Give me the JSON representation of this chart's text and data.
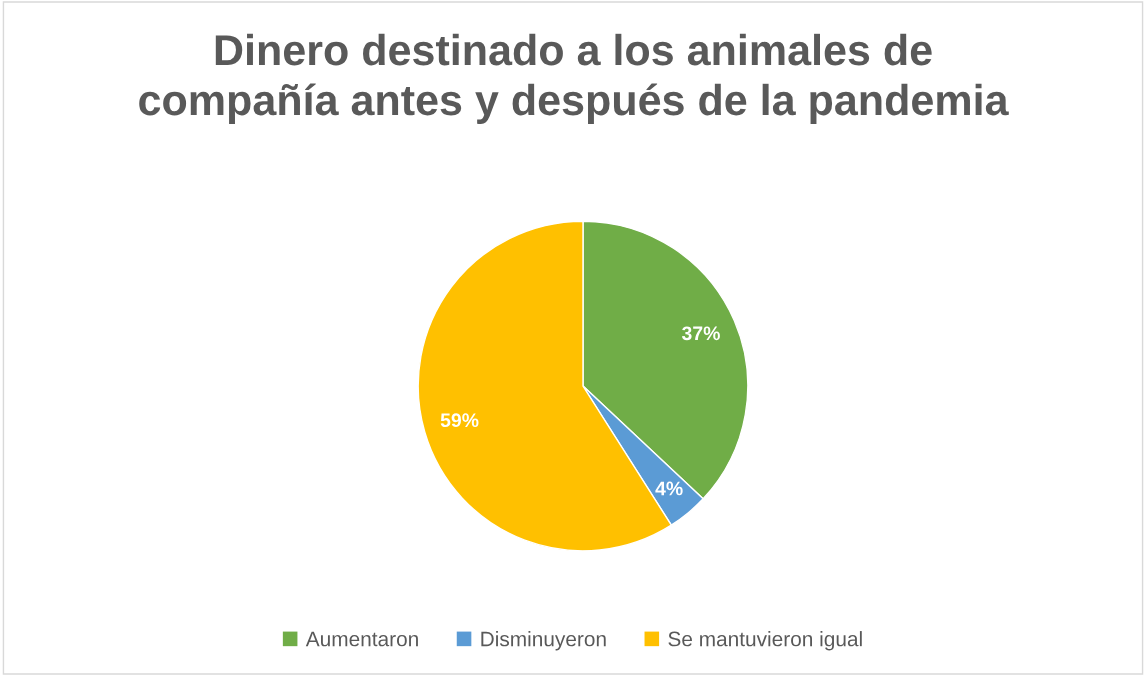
{
  "chart_data": {
    "type": "pie",
    "title": "Dinero destinado a los animales de compañía antes y después de la pandemia",
    "categories": [
      "Aumentaron",
      "Disminuyeron",
      "Se mantuvieron igual"
    ],
    "values": [
      37,
      4,
      59
    ],
    "value_labels": [
      "37%",
      "4%",
      "59%"
    ],
    "colors": [
      "#70ad47",
      "#5b9bd5",
      "#ffc000"
    ],
    "legend": "bottom"
  }
}
